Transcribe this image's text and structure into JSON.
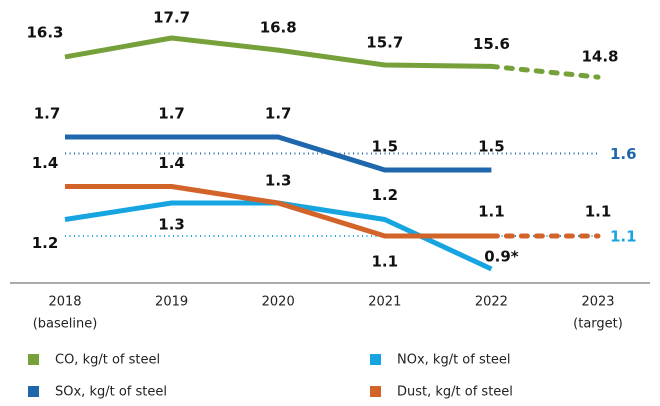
{
  "chart_data": {
    "type": "line",
    "categories": [
      "2018",
      "2019",
      "2020",
      "2021",
      "2022",
      "2023"
    ],
    "category_notes": [
      "(baseline)",
      null,
      null,
      null,
      null,
      "(target)"
    ],
    "series": [
      {
        "name": "CO, kg/t of steel",
        "color": "#76a03a",
        "values": [
          16.3,
          17.7,
          16.8,
          15.7,
          15.6,
          14.8
        ]
      },
      {
        "name": "SOx, kg/t of steel",
        "color": "#1f67ad",
        "values": [
          1.7,
          1.7,
          1.7,
          1.5,
          1.5,
          null
        ],
        "target": 1.6
      },
      {
        "name": "NOx, kg/t of steel",
        "color": "#16a5e0",
        "values": [
          1.2,
          1.3,
          1.3,
          1.2,
          0.9,
          null
        ],
        "value_labels": [
          "1.2",
          "1.3",
          null,
          "1.2",
          "0.9*",
          null
        ],
        "target": 1.1
      },
      {
        "name": "Dust, kg/t of steel",
        "color": "#d2642a",
        "values": [
          1.4,
          1.4,
          1.3,
          1.1,
          1.1,
          1.1
        ]
      }
    ]
  }
}
